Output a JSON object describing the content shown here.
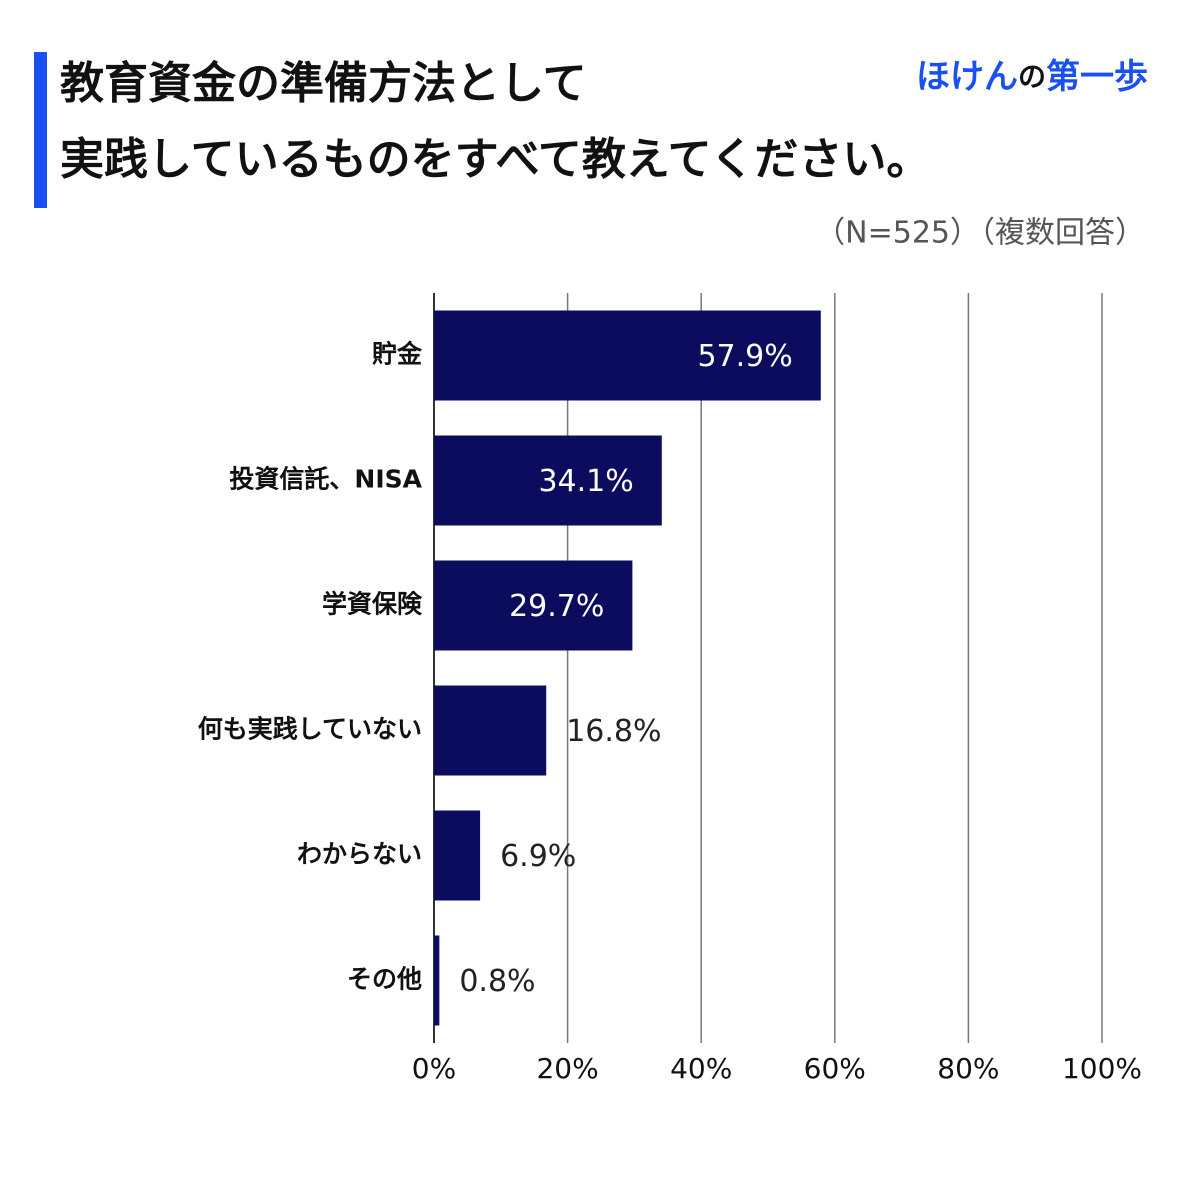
{
  "chart_data": {
    "type": "bar",
    "orientation": "horizontal",
    "title_lines": [
      "教育資金の準備方法として",
      "実践しているものをすべて教えてください。"
    ],
    "brand": [
      "ほけん",
      "の",
      "第一歩"
    ],
    "subtitle": "（N=525）（複数回答）",
    "categories": [
      "貯金",
      "投資信託、NISA",
      "学資保険",
      "何も実践していない",
      "わからない",
      "その他"
    ],
    "values": [
      57.9,
      34.1,
      29.7,
      16.8,
      6.9,
      0.8
    ],
    "value_labels": [
      "57.9%",
      "34.1%",
      "29.7%",
      "16.8%",
      "6.9%",
      "0.8%"
    ],
    "color": "#0b0c5e",
    "xlim": [
      0,
      100
    ],
    "xticks": [
      {
        "value": 0,
        "label": "0%"
      },
      {
        "value": 20,
        "label": "20%"
      },
      {
        "value": 40,
        "label": "40%"
      },
      {
        "value": 60,
        "label": "60%"
      },
      {
        "value": 80,
        "label": "80%"
      },
      {
        "value": 100,
        "label": "100%"
      }
    ],
    "grid": true
  }
}
